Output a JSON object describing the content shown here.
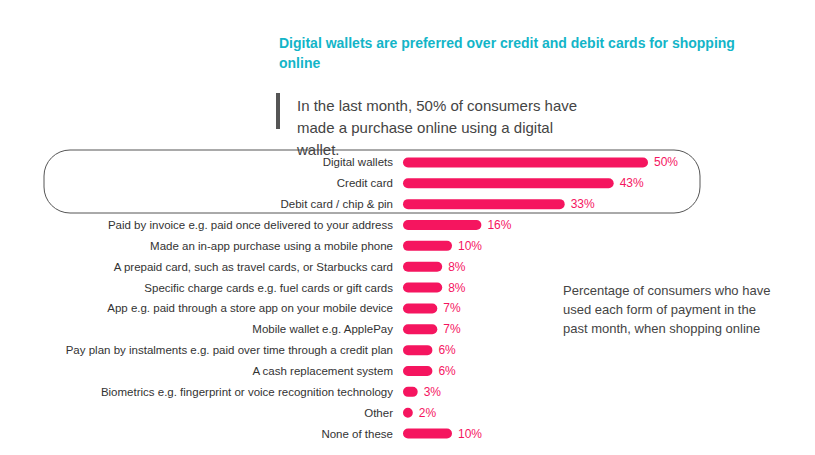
{
  "chart_data": {
    "type": "bar",
    "orientation": "horizontal",
    "title": "Digital wallets are preferred over credit and debit cards for shopping online",
    "subtitle": "In the last month, 50% of consumers have made a purchase online using a digital wallet.",
    "annotation": "Percentage of consumers who have used each form of payment in the past month, when shopping online",
    "categories": [
      "Digital wallets",
      "Credit card",
      "Debit card / chip & pin",
      "Paid by invoice e.g. paid once delivered to your address",
      "Made an in-app purchase using a mobile phone",
      "A prepaid card, such as travel cards, or Starbucks card",
      "Specific charge cards e.g. fuel cards or gift cards",
      "App e.g. paid through a store app on your mobile device",
      "Mobile wallet e.g. ApplePay",
      "Pay plan by instalments e.g. paid over time through a credit plan",
      "A cash replacement system",
      "Biometrics e.g. fingerprint or voice recognition technology",
      "Other",
      "None of these"
    ],
    "values": [
      50,
      43,
      33,
      16,
      10,
      8,
      8,
      7,
      7,
      6,
      6,
      3,
      2,
      10
    ],
    "value_labels": [
      "50%",
      "43%",
      "33%",
      "16%",
      "10%",
      "8%",
      "8%",
      "7%",
      "7%",
      "6%",
      "6%",
      "3%",
      "2%",
      "10%"
    ],
    "color": "#f5155f",
    "data_labels": true,
    "tick_labels": "y",
    "grid": false
  }
}
